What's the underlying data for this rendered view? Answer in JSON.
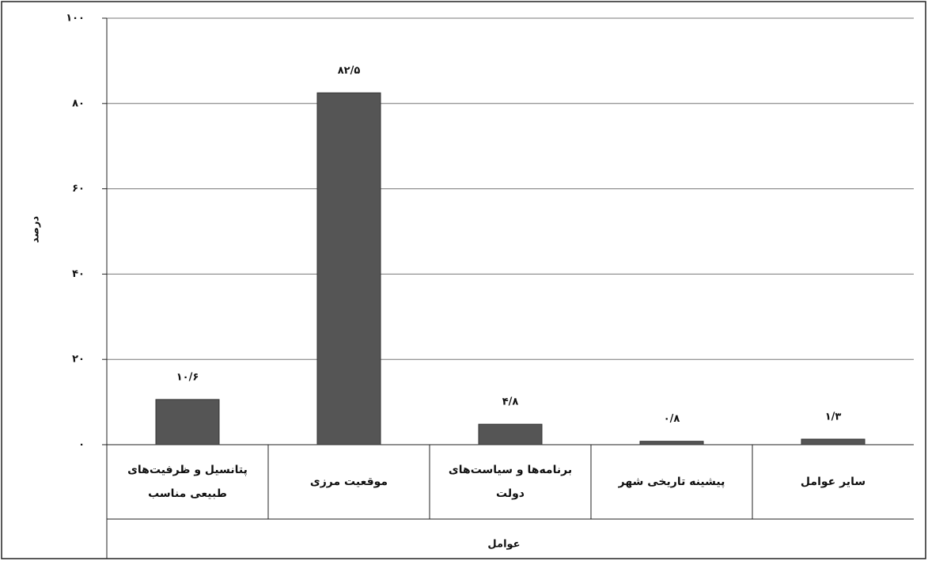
{
  "chart_data": {
    "type": "bar",
    "y_label": "درصد",
    "x_label": "عوامل",
    "categories": [
      "پتانسیل و ظرفیت‌های طبیعی مناسب",
      "موقعیت مرزی",
      "برنامه‌ها و سیاست‌های دولت",
      "پیشینه تاریخی شهر",
      "سایر عوامل"
    ],
    "values": [
      10.6,
      82.5,
      4.8,
      0.8,
      1.3
    ],
    "value_labels": [
      "۱۰/۶",
      "۸۲/۵",
      "۴/۸",
      "۰/۸",
      "۱/۳"
    ],
    "color": "#555555",
    "ylim": [
      0,
      100
    ],
    "yticks": [
      {
        "value": 0,
        "label": "۰"
      },
      {
        "value": 20,
        "label": "۲۰"
      },
      {
        "value": 40,
        "label": "۴۰"
      },
      {
        "value": 60,
        "label": "۶۰"
      },
      {
        "value": 80,
        "label": "۸۰"
      },
      {
        "value": 100,
        "label": "۱۰۰"
      }
    ],
    "grid": true
  }
}
